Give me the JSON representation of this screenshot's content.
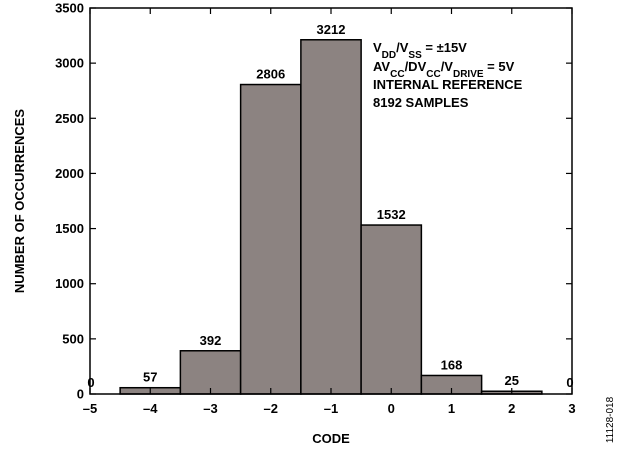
{
  "chart_data": {
    "type": "bar",
    "title": "",
    "xlabel": "CODE",
    "ylabel": "NUMBER OF OCCURRENCES",
    "xlim": [
      -5,
      3
    ],
    "ylim": [
      0,
      3500
    ],
    "xticks": [
      "–5",
      "–4",
      "–3",
      "–2",
      "–1",
      "0",
      "1",
      "2",
      "3"
    ],
    "yticks": [
      "0",
      "500",
      "1000",
      "1500",
      "2000",
      "2500",
      "3000",
      "3500"
    ],
    "categories": [
      -4,
      -3,
      -2,
      -1,
      0,
      1,
      2
    ],
    "values": [
      57,
      392,
      2806,
      3212,
      1532,
      168,
      25
    ],
    "end_labels": {
      "left": "0",
      "right": "0"
    },
    "grid": false,
    "legend": "none",
    "bar_color": "#8c8381",
    "annotation": [
      [
        {
          "t": "V"
        },
        {
          "t": "DD",
          "sub": true
        },
        {
          "t": "/V"
        },
        {
          "t": "SS",
          "sub": true
        },
        {
          "t": " = ±15V"
        }
      ],
      [
        {
          "t": "AV"
        },
        {
          "t": "CC",
          "sub": true
        },
        {
          "t": "/DV"
        },
        {
          "t": "CC",
          "sub": true
        },
        {
          "t": "/V"
        },
        {
          "t": "DRIVE",
          "sub": true
        },
        {
          "t": " = 5V"
        }
      ],
      [
        {
          "t": "INTERNAL REFERENCE"
        }
      ],
      [
        {
          "t": "8192 SAMPLES"
        }
      ]
    ],
    "figure_id": "11128-018"
  }
}
